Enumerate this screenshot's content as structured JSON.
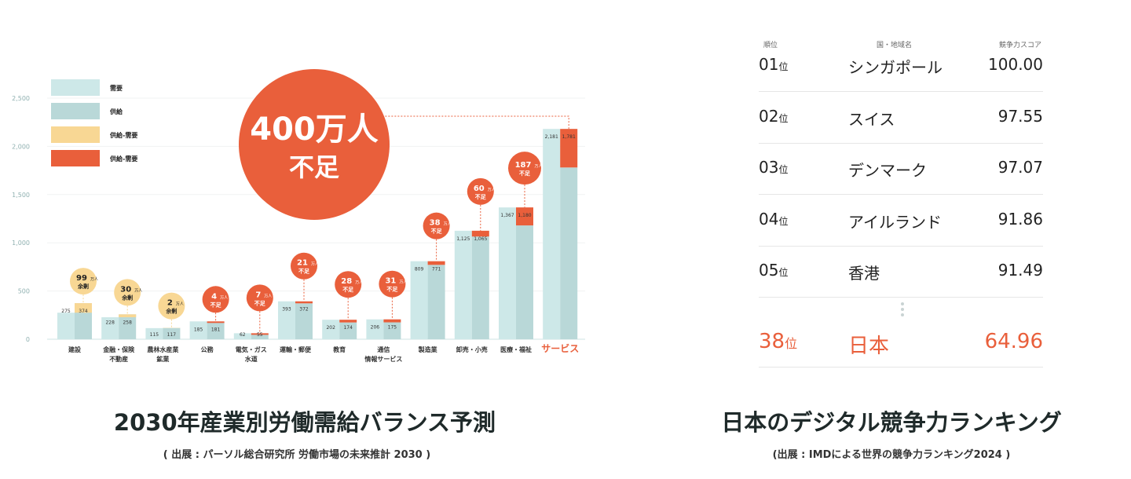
{
  "chart_data": {
    "type": "bar",
    "title": "2030年産業別労働需給バランス予測",
    "source": "( 出展 : パーソル総合研究所 労働市場の未来推計 2030 )",
    "ylim": [
      0,
      2500
    ],
    "yticks": [
      "0",
      "500",
      "1,000",
      "1,500",
      "2,000",
      "2,500"
    ],
    "grid": true,
    "legend_placement": "top-left",
    "legend": [
      "需要",
      "供給",
      "供給-需要",
      "供給-需要"
    ],
    "colors": {
      "demand": "#cde8e8",
      "supply": "#b9d8d8",
      "surplus": "#f8d794",
      "shortage": "#e95f3b"
    },
    "categories": [
      "建設",
      "金融・保険\n不動産",
      "農林水産業\n鉱業",
      "公務",
      "電気・ガス\n水道",
      "運輸・郵便",
      "教育",
      "通信\n情報サービス",
      "製造業",
      "卸売・小売",
      "医療・福祉",
      "サービス"
    ],
    "series": [
      {
        "name": "需要",
        "values": [
          275,
          228,
          115,
          185,
          62,
          393,
          202,
          206,
          809,
          1125,
          1367,
          2181
        ],
        "labels": [
          "275",
          "228",
          "115",
          "185",
          "62",
          "393",
          "202",
          "206",
          "809",
          "1,125",
          "1,367",
          "2,181"
        ]
      },
      {
        "name": "供給",
        "values": [
          374,
          258,
          117,
          181,
          55,
          372,
          174,
          175,
          771,
          1065,
          1180,
          1781
        ],
        "labels": [
          "374",
          "258",
          "117",
          "181",
          "55",
          "372",
          "174",
          "175",
          "771",
          "1,065",
          "1,180",
          "1,781"
        ]
      }
    ],
    "balance": [
      {
        "num": "99",
        "unit": "万人",
        "word": "余剰"
      },
      {
        "num": "30",
        "unit": "万人",
        "word": "余剰"
      },
      {
        "num": "2",
        "unit": "万人",
        "word": "余剰"
      },
      {
        "num": "4",
        "unit": "万人",
        "word": "不足"
      },
      {
        "num": "7",
        "unit": "万人",
        "word": "不足"
      },
      {
        "num": "21",
        "unit": "万人",
        "word": "不足"
      },
      {
        "num": "28",
        "unit": "万人",
        "word": "不足"
      },
      {
        "num": "31",
        "unit": "万人",
        "word": "不足"
      },
      {
        "num": "38",
        "unit": "万人",
        "word": "不足"
      },
      {
        "num": "60",
        "unit": "万人",
        "word": "不足"
      },
      {
        "num": "187",
        "unit": "万人",
        "word": "不足"
      },
      {
        "num": "400",
        "unit": "万人",
        "word": "不足"
      }
    ],
    "highlight": {
      "line1": "400万人",
      "line2": "不足"
    }
  },
  "ranking": {
    "title": "日本のデジタル競争力ランキング",
    "source": "(出展 : IMDによる世界の競争力ランキング2024 )",
    "headers": [
      "順位",
      "国・地域名",
      "競争力スコア"
    ],
    "suffix": "位",
    "rows": [
      {
        "rank": "01",
        "name": "シンガポール",
        "score": "100.00"
      },
      {
        "rank": "02",
        "name": "スイス",
        "score": "97.55"
      },
      {
        "rank": "03",
        "name": "デンマーク",
        "score": "97.07"
      },
      {
        "rank": "04",
        "name": "アイルランド",
        "score": "91.86"
      },
      {
        "rank": "05",
        "name": "香港",
        "score": "91.49"
      }
    ],
    "japan": {
      "rank": "38",
      "name": "日本",
      "score": "64.96"
    }
  }
}
